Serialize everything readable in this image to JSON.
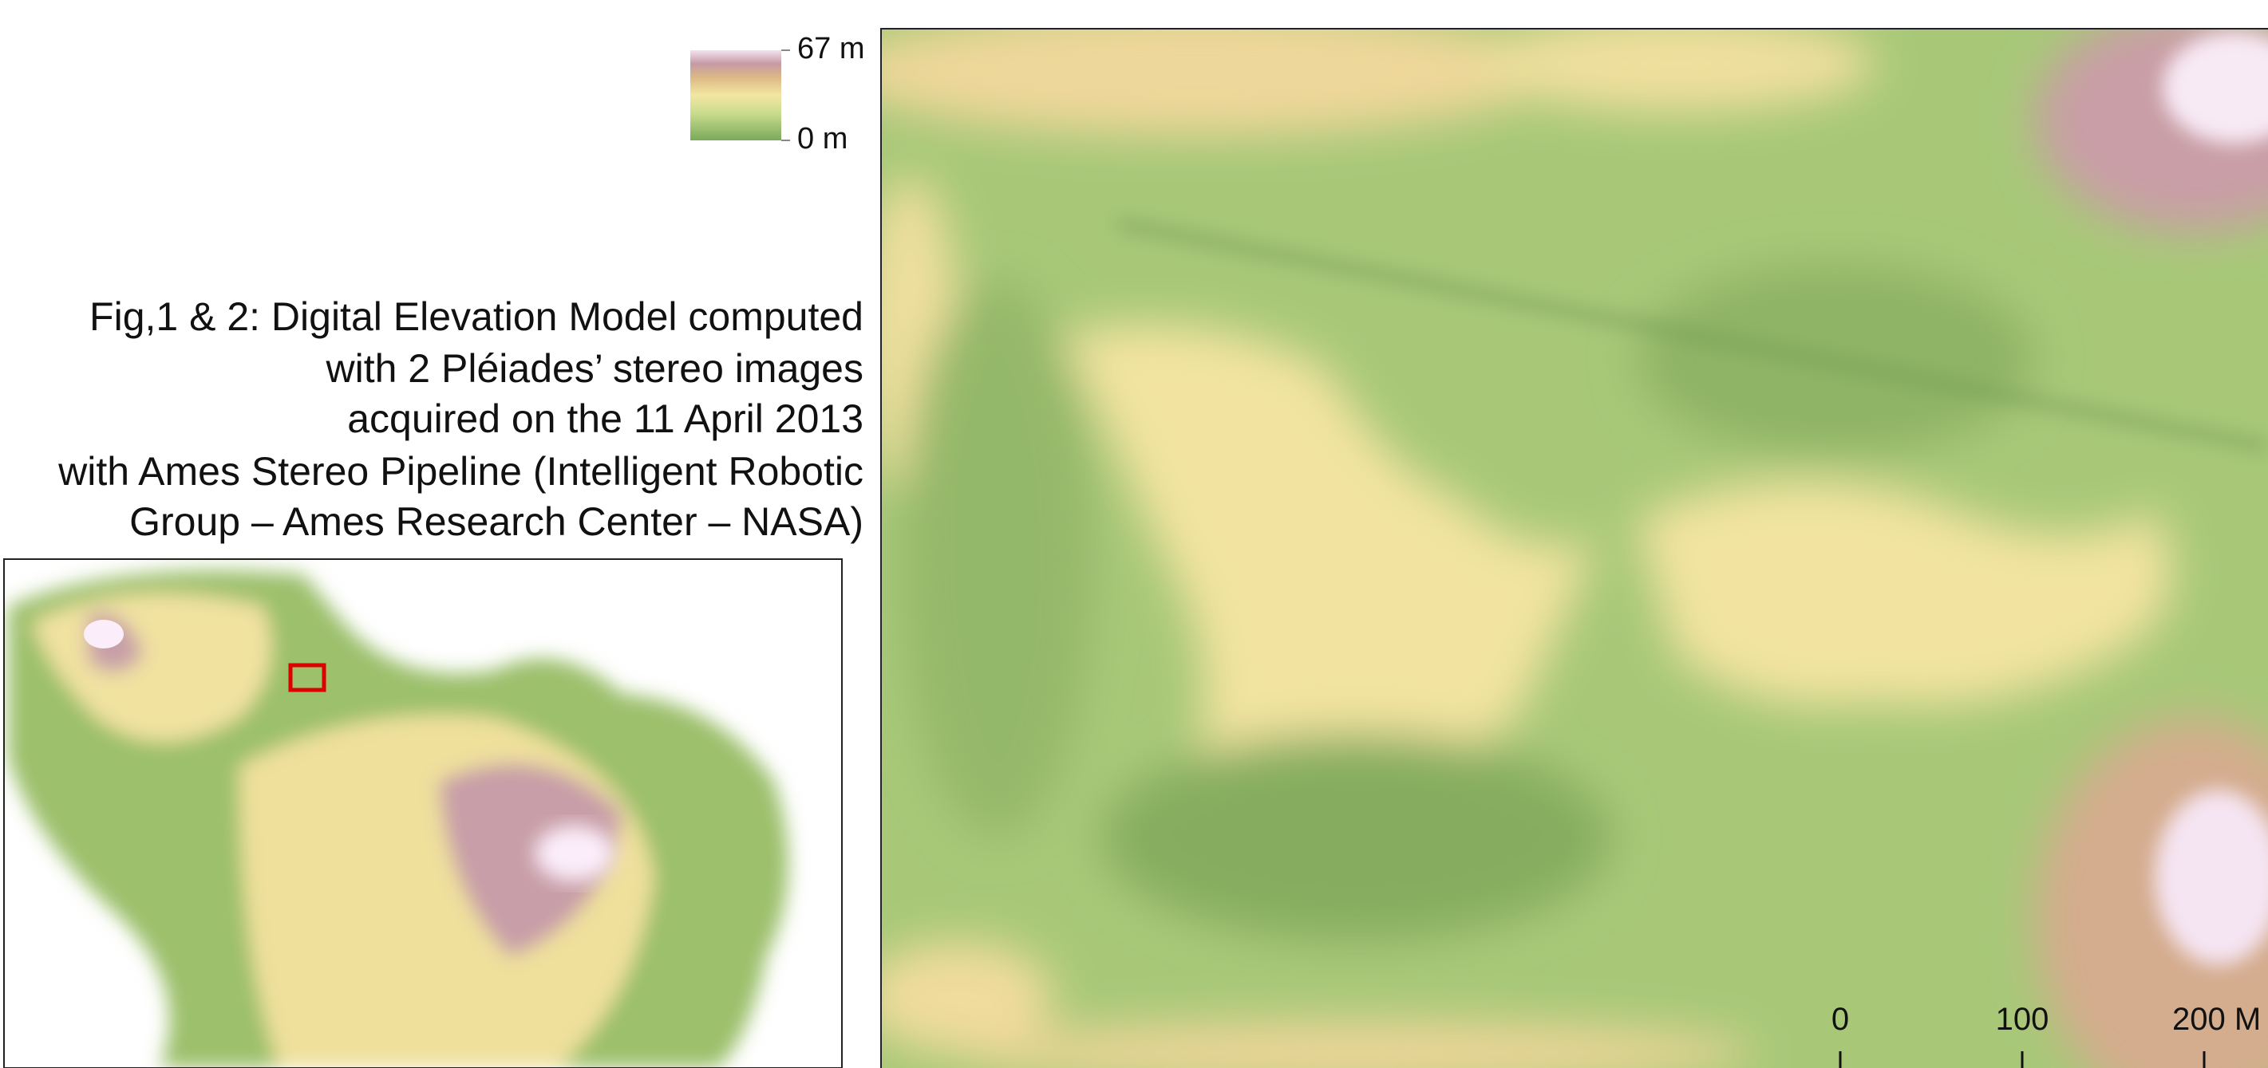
{
  "legend": {
    "max_label": "67 m",
    "min_label": "0 m"
  },
  "caption": {
    "lines": [
      "Fig,1 & 2: Digital Elevation Model computed",
      "with 2  Pléiades’ stereo images",
      "acquired on the 11 April 2013",
      "with Ames Stereo Pipeline (Intelligent Robotic",
      "Group – Ames Research Center –  NASA)"
    ]
  },
  "scale_bar": {
    "labels": [
      "0",
      "100",
      "200 M"
    ]
  }
}
